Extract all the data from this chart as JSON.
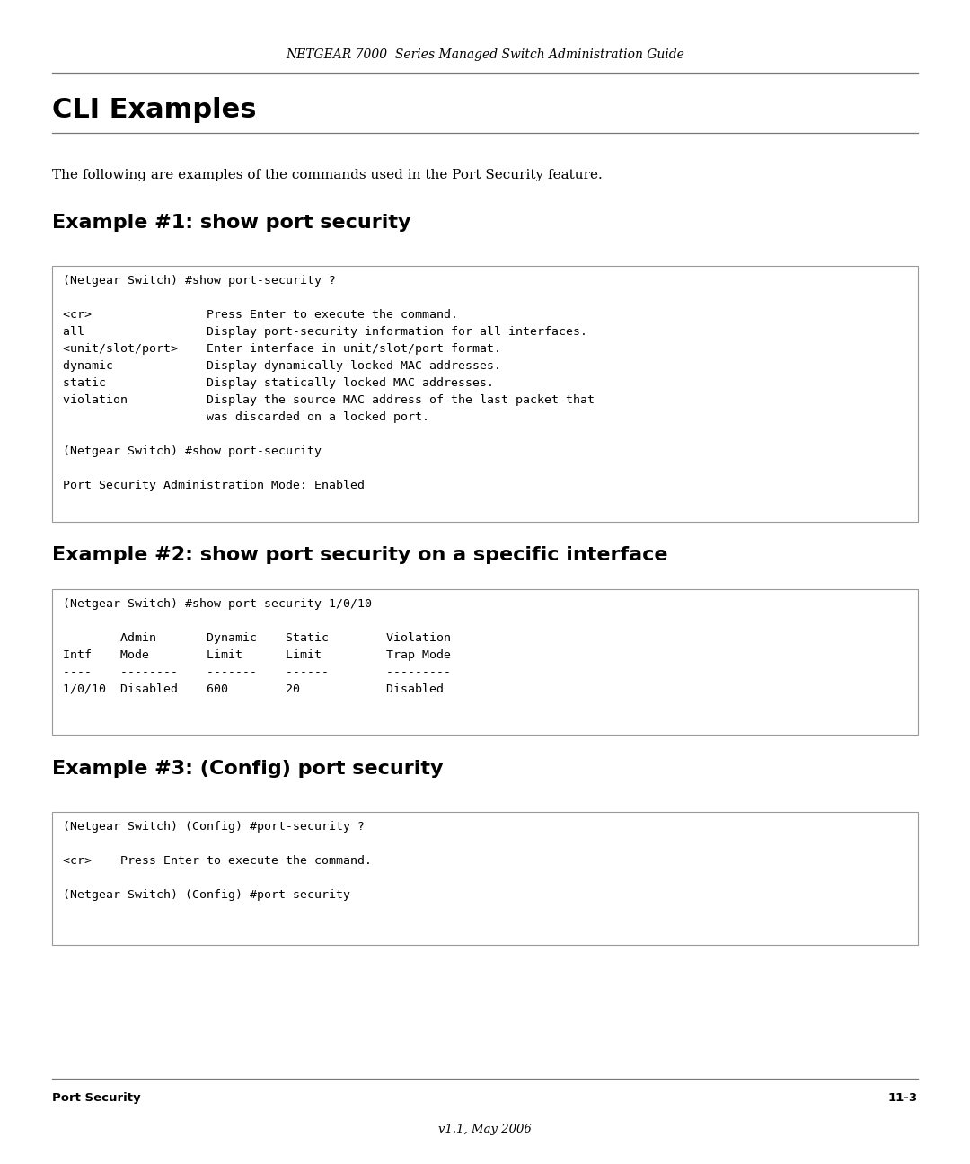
{
  "header_text": "NETGEAR 7000  Series Managed Switch Administration Guide",
  "main_title": "CLI Examples",
  "intro_text": "The following are examples of the commands used in the Port Security feature.",
  "example1_title": "Example #1: show port security",
  "example1_code": "(Netgear Switch) #show port-security ?\n\n<cr>                Press Enter to execute the command.\nall                 Display port-security information for all interfaces.\n<unit/slot/port>    Enter interface in unit/slot/port format.\ndynamic             Display dynamically locked MAC addresses.\nstatic              Display statically locked MAC addresses.\nviolation           Display the source MAC address of the last packet that\n                    was discarded on a locked port.\n\n(Netgear Switch) #show port-security\n\nPort Security Administration Mode: Enabled",
  "example2_title": "Example #2: show port security on a specific interface",
  "example2_code": "(Netgear Switch) #show port-security 1/0/10\n\n        Admin       Dynamic    Static        Violation\nIntf    Mode        Limit      Limit         Trap Mode\n----    --------    -------    ------        ---------\n1/0/10  Disabled    600        20            Disabled",
  "example3_title": "Example #3: (Config) port security",
  "example3_code": "(Netgear Switch) (Config) #port-security ?\n\n<cr>    Press Enter to execute the command.\n\n(Netgear Switch) (Config) #port-security",
  "footer_left": "Port Security",
  "footer_right": "11-3",
  "footer_center": "v1.1, May 2006",
  "bg_color": "#ffffff",
  "box_bg": "#ffffff",
  "box_border": "#999999",
  "text_color": "#000000",
  "mono_font_size": 9.5,
  "section_title_font_size": 16,
  "body_font_size": 11.0,
  "header_font_size": 10.0,
  "main_title_font_size": 22
}
